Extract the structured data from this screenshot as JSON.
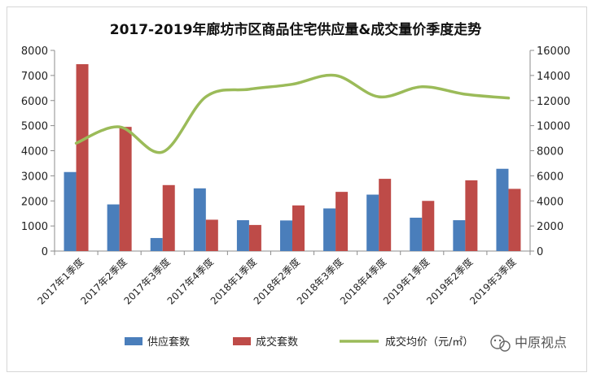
{
  "chart_data": {
    "type": "bar",
    "title": "2017-2019年廊坊市区商品住宅供应量&成交量价季度走势",
    "categories": [
      "2017年1季度",
      "2017年2季度",
      "2017年3季度",
      "2017年4季度",
      "2018年1季度",
      "2018年2季度",
      "2018年3季度",
      "2018年4季度",
      "2019年1季度",
      "2019年2季度",
      "2019年3季度"
    ],
    "series": [
      {
        "name": "供应套数",
        "type": "bar",
        "axis": "left",
        "color": "#4a7ebb",
        "values": [
          3150,
          1860,
          520,
          2500,
          1230,
          1220,
          1700,
          2250,
          1330,
          1230,
          3280
        ]
      },
      {
        "name": "成交套数",
        "type": "bar",
        "axis": "left",
        "color": "#be4b48",
        "values": [
          7450,
          4950,
          2630,
          1250,
          1040,
          1820,
          2360,
          2880,
          2000,
          2820,
          2480
        ]
      },
      {
        "name": "成交均价（元/㎡）",
        "type": "line",
        "axis": "right",
        "color": "#9bbb59",
        "values": [
          8600,
          9900,
          7900,
          12300,
          12900,
          13300,
          14000,
          12300,
          13100,
          12500,
          12200
        ]
      }
    ],
    "y_left": {
      "min": 0,
      "max": 8000,
      "step": 1000,
      "ticks": [
        "0",
        "1000",
        "2000",
        "3000",
        "4000",
        "5000",
        "6000",
        "7000",
        "8000"
      ]
    },
    "y_right": {
      "min": 0,
      "max": 16000,
      "step": 2000,
      "ticks": [
        "0",
        "2000",
        "4000",
        "6000",
        "8000",
        "10000",
        "12000",
        "14000",
        "16000"
      ]
    },
    "grid": false,
    "legend_position": "bottom"
  },
  "watermark": {
    "text": "中原视点",
    "icon": "wechat-icon"
  }
}
